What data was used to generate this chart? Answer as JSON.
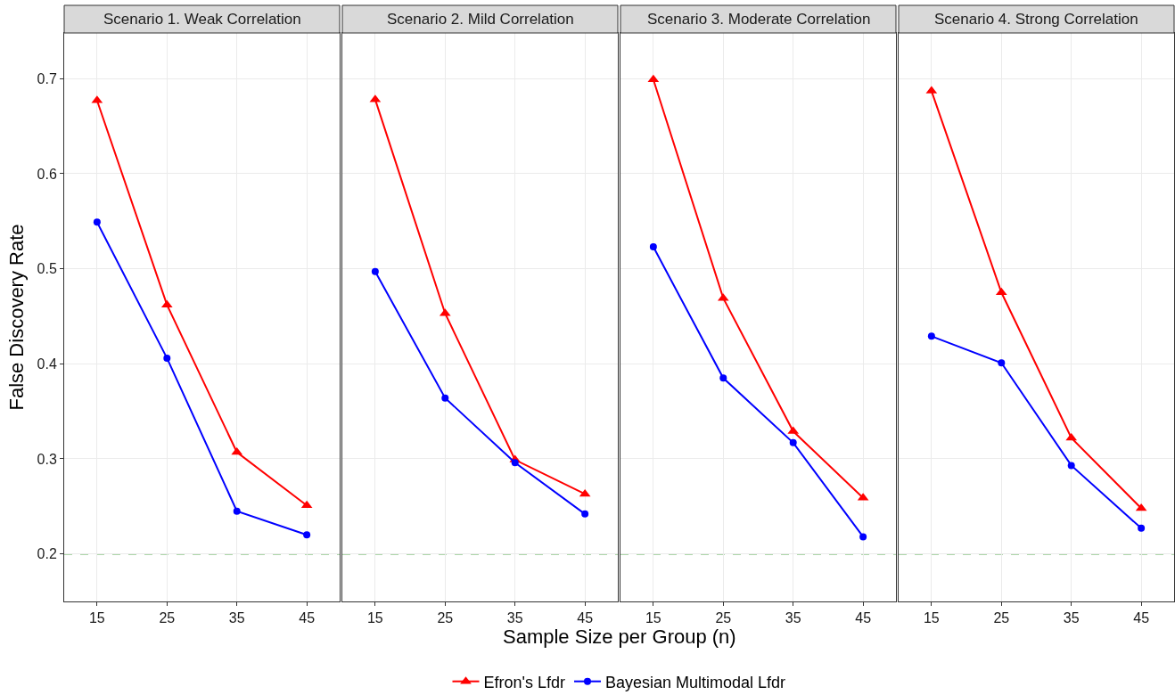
{
  "chart_data": [
    {
      "type": "line",
      "title": "Scenario 1. Weak Correlation",
      "ylabel": "False Discovery Rate",
      "categories": [
        "15",
        "25",
        "35",
        "45"
      ],
      "ylim": [
        0.15,
        0.748
      ],
      "yticks": [
        0.2,
        0.3,
        0.4,
        0.5,
        0.6,
        0.7
      ],
      "grid": true,
      "legend": "bottom",
      "series": [
        {
          "name": "Efron's Lfdr",
          "color": "#ff0000",
          "marker": "triangle",
          "values": [
            0.677,
            0.462,
            0.307,
            0.251
          ]
        },
        {
          "name": "Bayesian Multimodal Lfdr",
          "color": "#0000ff",
          "marker": "circle",
          "values": [
            0.549,
            0.406,
            0.245,
            0.22
          ]
        }
      ],
      "ref_lines": [
        {
          "axis": "y",
          "value": 0.2,
          "color": "#5fad56",
          "line_style": "dashed"
        }
      ]
    },
    {
      "type": "line",
      "title": "Scenario 2. Mild Correlation",
      "xlabel": "Sample Size per Group (n)",
      "categories": [
        "15",
        "25",
        "35",
        "45"
      ],
      "ylim": [
        0.15,
        0.748
      ],
      "yticks": [
        0.2,
        0.3,
        0.4,
        0.5,
        0.6,
        0.7
      ],
      "grid": true,
      "tick_labels": "x",
      "series": [
        {
          "color": "#ff0000",
          "marker": "triangle",
          "values": [
            0.678,
            0.453,
            0.299,
            0.263
          ]
        },
        {
          "color": "#0000ff",
          "marker": "circle",
          "values": [
            0.497,
            0.364,
            0.296,
            0.242
          ]
        }
      ],
      "ref_lines": [
        {
          "axis": "y",
          "value": 0.2,
          "color": "#5fad56",
          "line_style": "dashed"
        }
      ]
    },
    {
      "type": "line",
      "title": "Scenario 3. Moderate Correlation",
      "categories": [
        "15",
        "25",
        "35",
        "45"
      ],
      "ylim": [
        0.15,
        0.748
      ],
      "yticks": [
        0.2,
        0.3,
        0.4,
        0.5,
        0.6,
        0.7
      ],
      "grid": true,
      "tick_labels": "x",
      "series": [
        {
          "color": "#ff0000",
          "marker": "triangle",
          "values": [
            0.699,
            0.469,
            0.329,
            0.259
          ]
        },
        {
          "color": "#0000ff",
          "marker": "circle",
          "values": [
            0.523,
            0.385,
            0.317,
            0.218
          ]
        }
      ],
      "ref_lines": [
        {
          "axis": "y",
          "value": 0.2,
          "color": "#5fad56",
          "line_style": "dashed"
        }
      ]
    },
    {
      "type": "line",
      "title": "Scenario 4. Strong Correlation",
      "categories": [
        "15",
        "25",
        "35",
        "45"
      ],
      "ylim": [
        0.15,
        0.748
      ],
      "yticks": [
        0.2,
        0.3,
        0.4,
        0.5,
        0.6,
        0.7
      ],
      "grid": true,
      "tick_labels": "x",
      "series": [
        {
          "color": "#ff0000",
          "marker": "triangle",
          "values": [
            0.687,
            0.475,
            0.322,
            0.248
          ]
        },
        {
          "color": "#0000ff",
          "marker": "circle",
          "values": [
            0.429,
            0.401,
            0.293,
            0.227
          ]
        }
      ],
      "ref_lines": [
        {
          "axis": "y",
          "value": 0.2,
          "color": "#5fad56",
          "line_style": "dashed"
        }
      ]
    }
  ]
}
